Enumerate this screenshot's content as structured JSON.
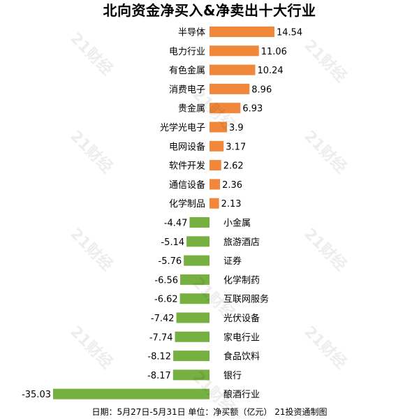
{
  "title": "北向资金净买入&净卖出十大行业",
  "footer": "日期：5月27日-5月31日 单位：净买额（亿元） 21投资通制图",
  "watermark": "21财经",
  "colors": {
    "positive": "#F0873A",
    "negative": "#76B041"
  },
  "chart_data": {
    "type": "bar",
    "orientation": "horizontal",
    "categories": [
      "半导体",
      "电力行业",
      "有色金属",
      "消费电子",
      "贵金属",
      "光学光电子",
      "电网设备",
      "软件开发",
      "通信设备",
      "化学制品",
      "小金属",
      "旅游酒店",
      "证券",
      "化学制药",
      "互联网服务",
      "光伏设备",
      "家电行业",
      "食品饮料",
      "银行",
      "酿酒行业"
    ],
    "values": [
      14.54,
      11.06,
      10.24,
      8.96,
      6.93,
      3.9,
      3.17,
      2.62,
      2.36,
      2.13,
      -4.47,
      -5.14,
      -5.76,
      -6.56,
      -6.62,
      -7.42,
      -7.74,
      -8.12,
      -8.17,
      -35.03
    ],
    "value_labels": [
      "14.54",
      "11.06",
      "10.24",
      "8.96",
      "6.93",
      "3.9",
      "3.17",
      "2.62",
      "2.36",
      "2.13",
      "-4.47",
      "-5.14",
      "-5.76",
      "-6.56",
      "-6.62",
      "-7.42",
      "-7.74",
      "-8.12",
      "-8.17",
      "-35.03"
    ],
    "title": "北向资金净买入&净卖出十大行业",
    "xlabel": "",
    "ylabel": "净买额（亿元）",
    "xlim": [
      -35.03,
      14.54
    ],
    "grid": false,
    "legend": "none"
  }
}
